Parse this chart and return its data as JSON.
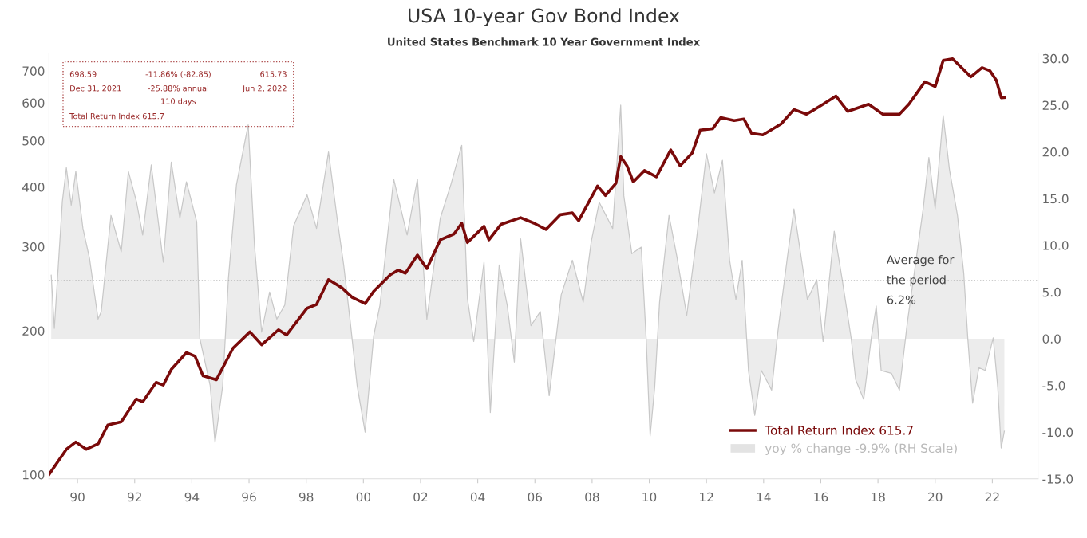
{
  "chart_data": {
    "type": "line",
    "title": "USA 10-year Gov Bond Index",
    "subtitle": "United States Benchmark 10 Year Government Index",
    "annotations": [
      "698.59",
      "-11.86% (-82.85)",
      "615.73",
      "Dec 31, 2021",
      "-25.88% annual",
      "Jun 2, 2022",
      "110 days",
      "Total Return Index 615.7"
    ],
    "log": "y",
    "grid": false,
    "legend": "bottom right",
    "xlim": [
      1989.0,
      2023.6
    ],
    "xticks": [
      {
        "value": 1990,
        "label": "90"
      },
      {
        "value": 1992,
        "label": "92"
      },
      {
        "value": 1994,
        "label": "94"
      },
      {
        "value": 1996,
        "label": "96"
      },
      {
        "value": 1998,
        "label": "98"
      },
      {
        "value": 2000,
        "label": "00"
      },
      {
        "value": 2002,
        "label": "02"
      },
      {
        "value": 2004,
        "label": "04"
      },
      {
        "value": 2006,
        "label": "06"
      },
      {
        "value": 2008,
        "label": "08"
      },
      {
        "value": 2010,
        "label": "10"
      },
      {
        "value": 2012,
        "label": "12"
      },
      {
        "value": 2014,
        "label": "14"
      },
      {
        "value": 2016,
        "label": "16"
      },
      {
        "value": 2018,
        "label": "18"
      },
      {
        "value": 2020,
        "label": "20"
      },
      {
        "value": 2022,
        "label": "22"
      }
    ],
    "ylim": [
      98,
      760
    ],
    "yticks": [
      100,
      200,
      300,
      400,
      500,
      600,
      700
    ],
    "y2lim": [
      -15,
      30.5
    ],
    "y2ticks": [
      {
        "value": -15,
        "label": "-15.0"
      },
      {
        "value": -10,
        "label": "-10.0"
      },
      {
        "value": -5,
        "label": "-5.0"
      },
      {
        "value": 0,
        "label": "0.0"
      },
      {
        "value": 5,
        "label": "5.0"
      },
      {
        "value": 10,
        "label": "10.0"
      },
      {
        "value": 15,
        "label": "15.0"
      },
      {
        "value": 20,
        "label": "20.0"
      },
      {
        "value": 25,
        "label": "25.0"
      },
      {
        "value": 30,
        "label": "30.0"
      }
    ],
    "ref_lines": [
      {
        "axis": "y2",
        "value": 6.2,
        "label": "Average for\nthe period\n6.2%",
        "color": "#999999",
        "line_style": "dotted"
      }
    ],
    "series": [
      {
        "name": "yoy % change -9.9% (RH Scale)",
        "type": "area",
        "axis": "y2",
        "color": "#c8c8c8",
        "x": [
          1989.08,
          1989.19,
          1989.47,
          1989.61,
          1989.78,
          1989.94,
          1990.19,
          1990.42,
          1990.72,
          1990.83,
          1991.17,
          1991.53,
          1991.78,
          1992.06,
          1992.28,
          1992.58,
          1993.0,
          1993.28,
          1993.58,
          1993.81,
          1994.17,
          1994.28,
          1994.64,
          1994.81,
          1995.08,
          1995.28,
          1995.56,
          1995.97,
          1996.19,
          1996.44,
          1996.72,
          1996.97,
          1997.25,
          1997.56,
          1998.03,
          1998.36,
          1998.78,
          1999.08,
          1999.31,
          1999.53,
          1999.78,
          2000.06,
          2000.36,
          2000.58,
          2001.06,
          2001.53,
          2001.89,
          2002.22,
          2002.69,
          2003.06,
          2003.44,
          2003.64,
          2003.86,
          2004.22,
          2004.44,
          2004.75,
          2005.03,
          2005.28,
          2005.5,
          2005.86,
          2006.19,
          2006.5,
          2006.92,
          2007.31,
          2007.69,
          2007.97,
          2008.25,
          2008.72,
          2009.0,
          2009.11,
          2009.39,
          2009.72,
          2009.89,
          2010.03,
          2010.19,
          2010.36,
          2010.69,
          2010.97,
          2011.31,
          2011.67,
          2012.0,
          2012.28,
          2012.56,
          2012.81,
          2013.03,
          2013.25,
          2013.47,
          2013.69,
          2013.92,
          2014.28,
          2014.5,
          2014.83,
          2015.06,
          2015.28,
          2015.53,
          2015.86,
          2016.08,
          2016.47,
          2016.75,
          2017.06,
          2017.22,
          2017.5,
          2017.78,
          2017.94,
          2018.11,
          2018.47,
          2018.75,
          2019.03,
          2019.25,
          2019.58,
          2019.78,
          2020.0,
          2020.28,
          2020.5,
          2020.78,
          2021.0,
          2021.14,
          2021.31,
          2021.53,
          2021.75,
          2022.03,
          2022.19,
          2022.31,
          2022.42
        ],
        "values": [
          6.8,
          1.1,
          14.7,
          18.3,
          14.3,
          17.9,
          11.8,
          8.6,
          2.1,
          2.9,
          13.2,
          9.3,
          17.9,
          14.7,
          11.1,
          18.6,
          8.2,
          18.9,
          12.9,
          16.8,
          12.5,
          0.0,
          -5.0,
          -11.1,
          -5.0,
          6.5,
          16.5,
          22.9,
          10.0,
          0.7,
          5.0,
          2.1,
          3.6,
          12.1,
          15.4,
          11.8,
          20.0,
          12.9,
          7.9,
          2.1,
          -5.0,
          -10.0,
          0.3,
          3.6,
          17.1,
          11.1,
          17.1,
          2.1,
          12.9,
          16.5,
          20.7,
          4.3,
          -0.3,
          8.2,
          -7.9,
          7.9,
          3.6,
          -2.5,
          10.7,
          1.4,
          2.9,
          -6.1,
          4.7,
          8.4,
          3.9,
          10.4,
          14.6,
          11.8,
          25.0,
          15.3,
          9.1,
          9.8,
          0.1,
          -10.4,
          -5.2,
          3.9,
          13.2,
          8.7,
          2.5,
          11.1,
          19.8,
          15.6,
          19.1,
          8.4,
          4.2,
          8.4,
          -3.4,
          -8.2,
          -3.4,
          -5.5,
          0.8,
          8.7,
          13.9,
          9.4,
          4.2,
          6.3,
          -0.3,
          11.5,
          6.3,
          0.1,
          -4.4,
          -6.5,
          0.4,
          3.5,
          -3.4,
          -3.7,
          -5.5,
          1.8,
          6.6,
          13.9,
          19.4,
          13.9,
          23.9,
          18.1,
          13.2,
          7.0,
          0.1,
          -6.9,
          -3.1,
          -3.4,
          0.1,
          -5.2,
          -11.7,
          -9.9
        ]
      },
      {
        "name": "Total Return Index 615.7",
        "color": "#7a0a0a",
        "x": [
          1989.0,
          1989.61,
          1989.94,
          1990.31,
          1990.72,
          1991.06,
          1991.53,
          1992.06,
          1992.28,
          1992.75,
          1993.0,
          1993.28,
          1993.81,
          1994.11,
          1994.39,
          1994.86,
          1995.44,
          1996.03,
          1996.44,
          1997.03,
          1997.31,
          1998.03,
          1998.36,
          1998.78,
          1999.25,
          1999.61,
          2000.06,
          2000.36,
          2000.94,
          2001.22,
          2001.47,
          2001.89,
          2002.22,
          2002.69,
          2003.17,
          2003.44,
          2003.64,
          2004.22,
          2004.39,
          2004.81,
          2005.5,
          2005.97,
          2006.39,
          2006.89,
          2007.31,
          2007.53,
          2008.19,
          2008.47,
          2008.83,
          2009.0,
          2009.22,
          2009.44,
          2009.83,
          2010.25,
          2010.75,
          2011.08,
          2011.5,
          2011.78,
          2012.22,
          2012.5,
          2012.97,
          2013.31,
          2013.58,
          2013.97,
          2014.61,
          2015.06,
          2015.5,
          2016.08,
          2016.53,
          2016.94,
          2017.67,
          2018.17,
          2018.75,
          2019.08,
          2019.64,
          2020.0,
          2020.28,
          2020.61,
          2021.25,
          2021.64,
          2021.92,
          2022.14,
          2022.31,
          2022.42
        ],
        "values": [
          100,
          113,
          117,
          113,
          116,
          127,
          129,
          144,
          142,
          156,
          154,
          166,
          180,
          177,
          161,
          158,
          184,
          199,
          187,
          201,
          196,
          223,
          227,
          256,
          246,
          235,
          228,
          242,
          262,
          268,
          264,
          288,
          270,
          310,
          319,
          336,
          306,
          331,
          310,
          334,
          345,
          336,
          326,
          350,
          353,
          340,
          402,
          384,
          407,
          463,
          443,
          410,
          433,
          420,
          478,
          443,
          471,
          526,
          530,
          559,
          551,
          555,
          518,
          514,
          542,
          581,
          568,
          596,
          620,
          576,
          596,
          568,
          568,
          596,
          664,
          649,
          736,
          742,
          680,
          711,
          700,
          669,
          615,
          615.7
        ]
      }
    ]
  }
}
